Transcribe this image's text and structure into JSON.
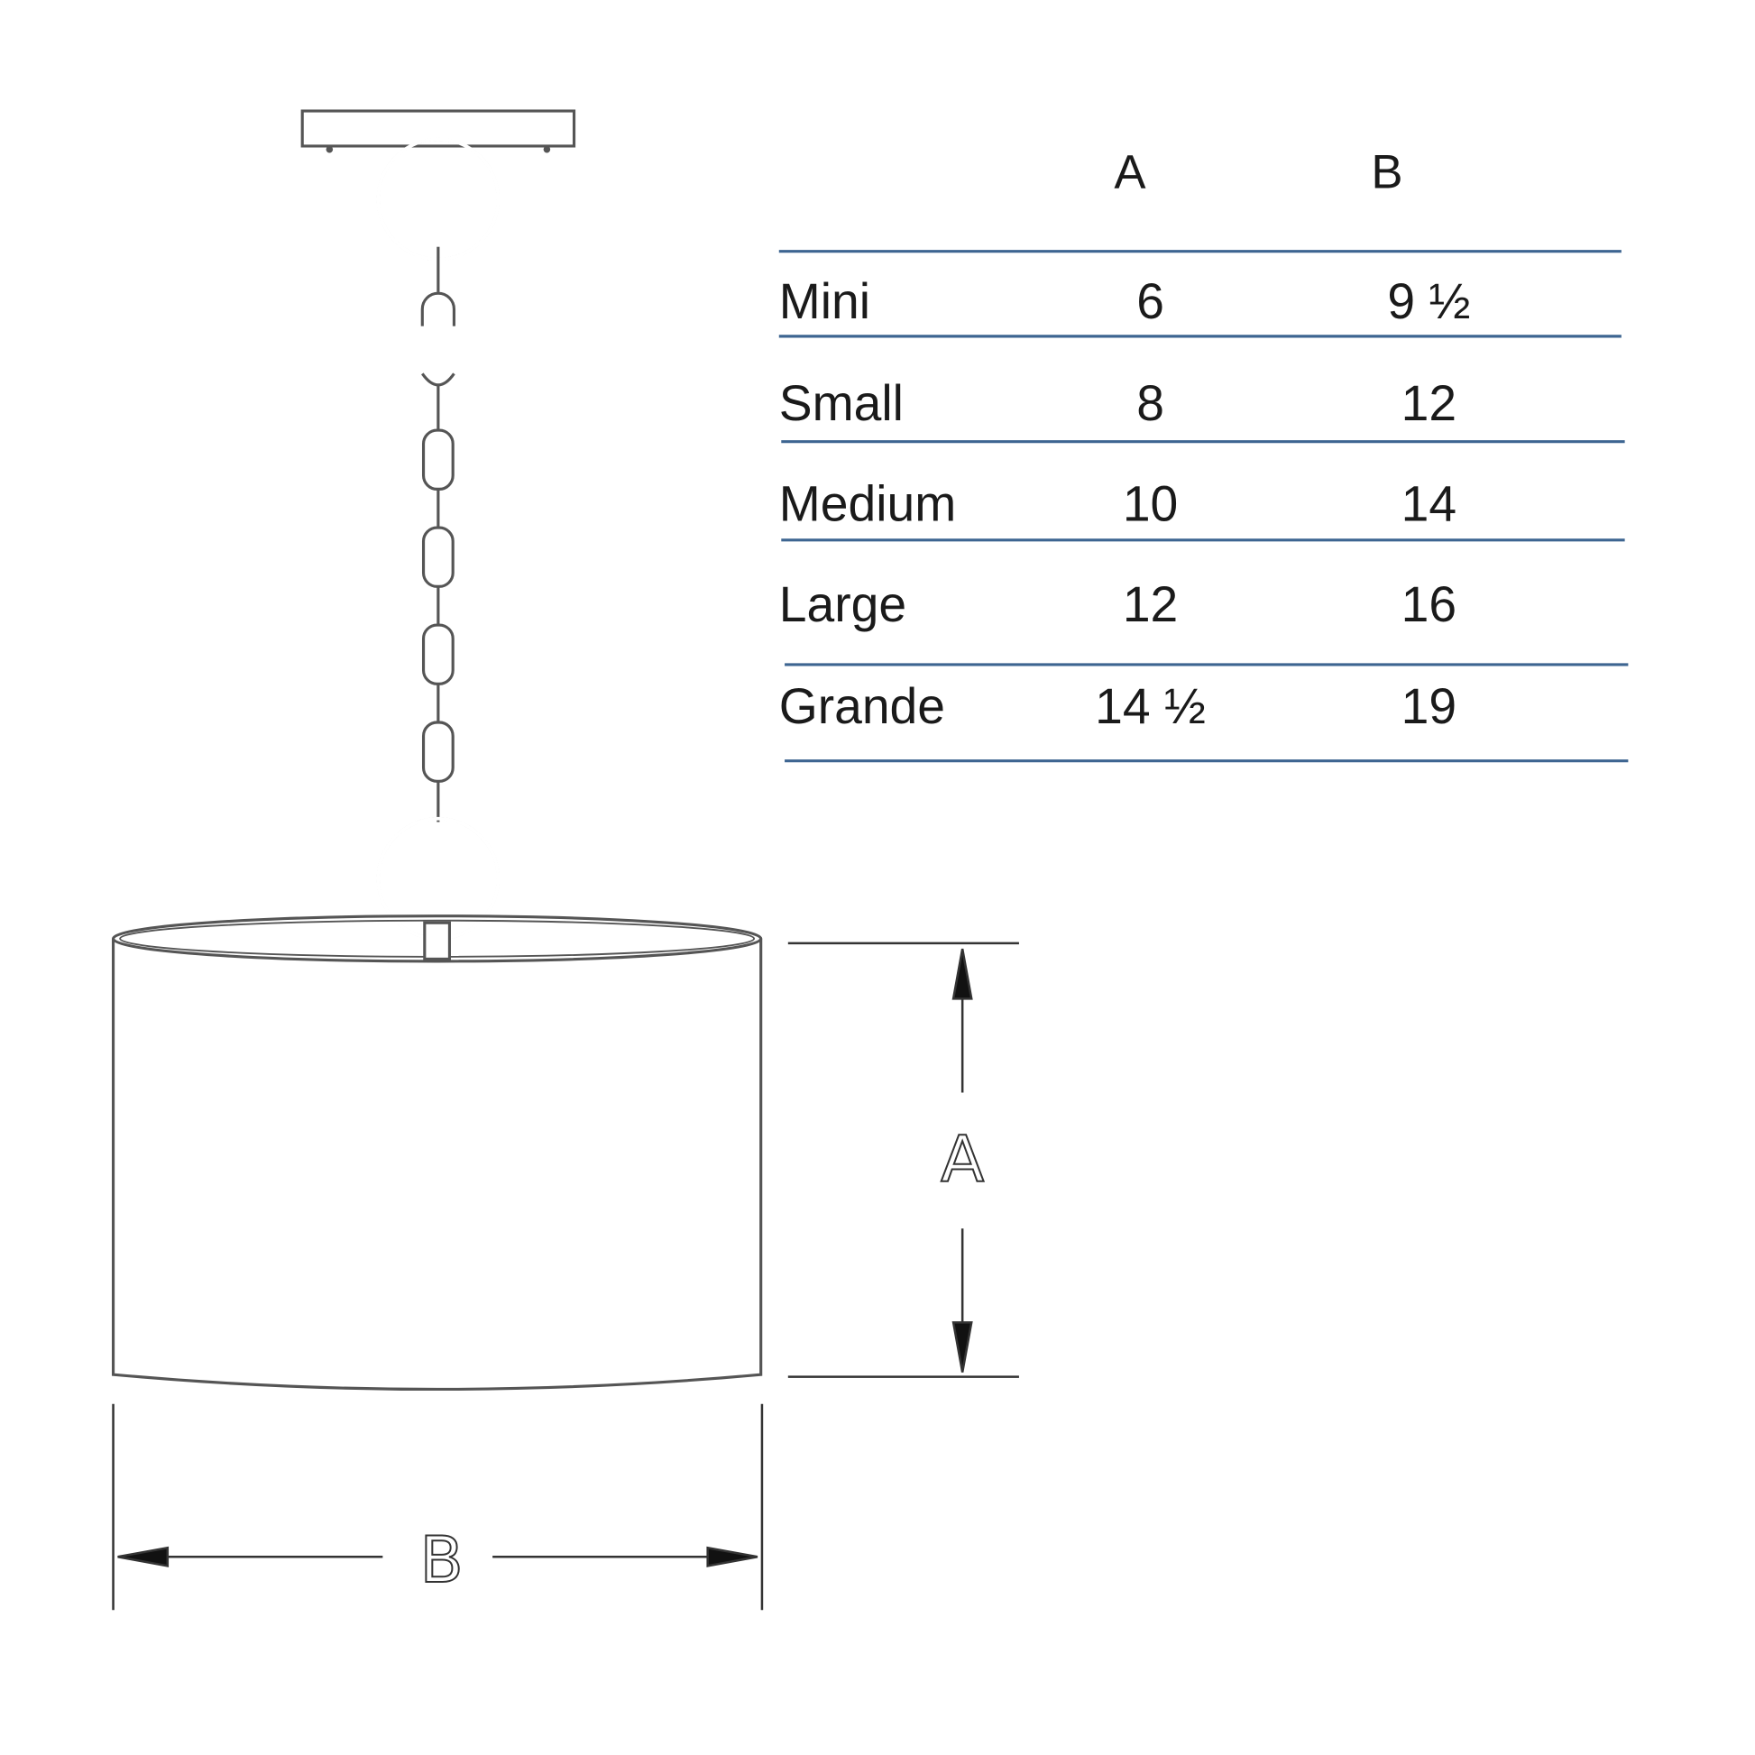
{
  "table": {
    "headers": [
      "",
      "A",
      "B"
    ],
    "rows": [
      {
        "size": "Mini",
        "a": "6",
        "b": "9 ½"
      },
      {
        "size": "Small",
        "a": "8",
        "b": "12"
      },
      {
        "size": "Medium",
        "a": "10",
        "b": "14"
      },
      {
        "size": "Large",
        "a": "12",
        "b": "16"
      },
      {
        "size": "Grande",
        "a": "14 ½",
        "b": "19"
      }
    ],
    "rule_color": "#3d6591"
  },
  "drawing": {
    "height_label": "A",
    "width_label": "B"
  }
}
